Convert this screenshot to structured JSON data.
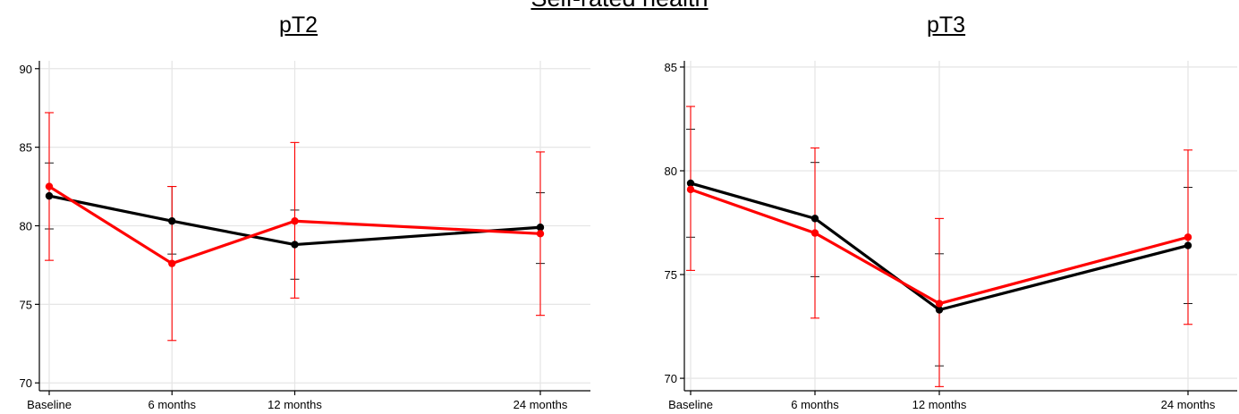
{
  "figure": {
    "title": "Self-rated health"
  },
  "colors": {
    "black_series": "#000000",
    "red_series": "#ff0000",
    "grid": "#e6e6e6"
  },
  "chart_data": [
    {
      "type": "line",
      "title": "pT2",
      "categories": [
        "Baseline",
        "6 months",
        "12 months",
        "24 months"
      ],
      "x": [
        0,
        6,
        12,
        24
      ],
      "xlabel": "",
      "ylabel": "",
      "ylim": [
        69.5,
        90.5
      ],
      "yticks": [
        70,
        75,
        80,
        85,
        90
      ],
      "grid": true,
      "series": [
        {
          "color": "#000000",
          "values": [
            81.9,
            80.3,
            78.8,
            79.9
          ],
          "lower": [
            79.8,
            78.2,
            76.6,
            77.6
          ],
          "upper": [
            84.0,
            82.5,
            81.0,
            82.1
          ]
        },
        {
          "color": "#ff0000",
          "values": [
            82.5,
            77.6,
            80.3,
            79.5
          ],
          "lower": [
            77.8,
            72.7,
            75.4,
            74.3
          ],
          "upper": [
            87.2,
            82.5,
            85.3,
            84.7
          ]
        }
      ]
    },
    {
      "type": "line",
      "title": "pT3",
      "categories": [
        "Baseline",
        "6 months",
        "12 months",
        "24 months"
      ],
      "x": [
        0,
        6,
        12,
        24
      ],
      "xlabel": "",
      "ylabel": "",
      "ylim": [
        69.4,
        85.3
      ],
      "yticks": [
        70,
        75,
        80,
        85
      ],
      "grid": true,
      "series": [
        {
          "color": "#000000",
          "values": [
            79.4,
            77.7,
            73.3,
            76.4
          ],
          "lower": [
            76.8,
            74.9,
            70.6,
            73.6
          ],
          "upper": [
            82.0,
            80.4,
            76.0,
            79.2
          ]
        },
        {
          "color": "#ff0000",
          "values": [
            79.1,
            77.0,
            73.6,
            76.8
          ],
          "lower": [
            75.2,
            72.9,
            69.6,
            72.6
          ],
          "upper": [
            83.1,
            81.1,
            77.7,
            81.0
          ]
        }
      ]
    }
  ]
}
